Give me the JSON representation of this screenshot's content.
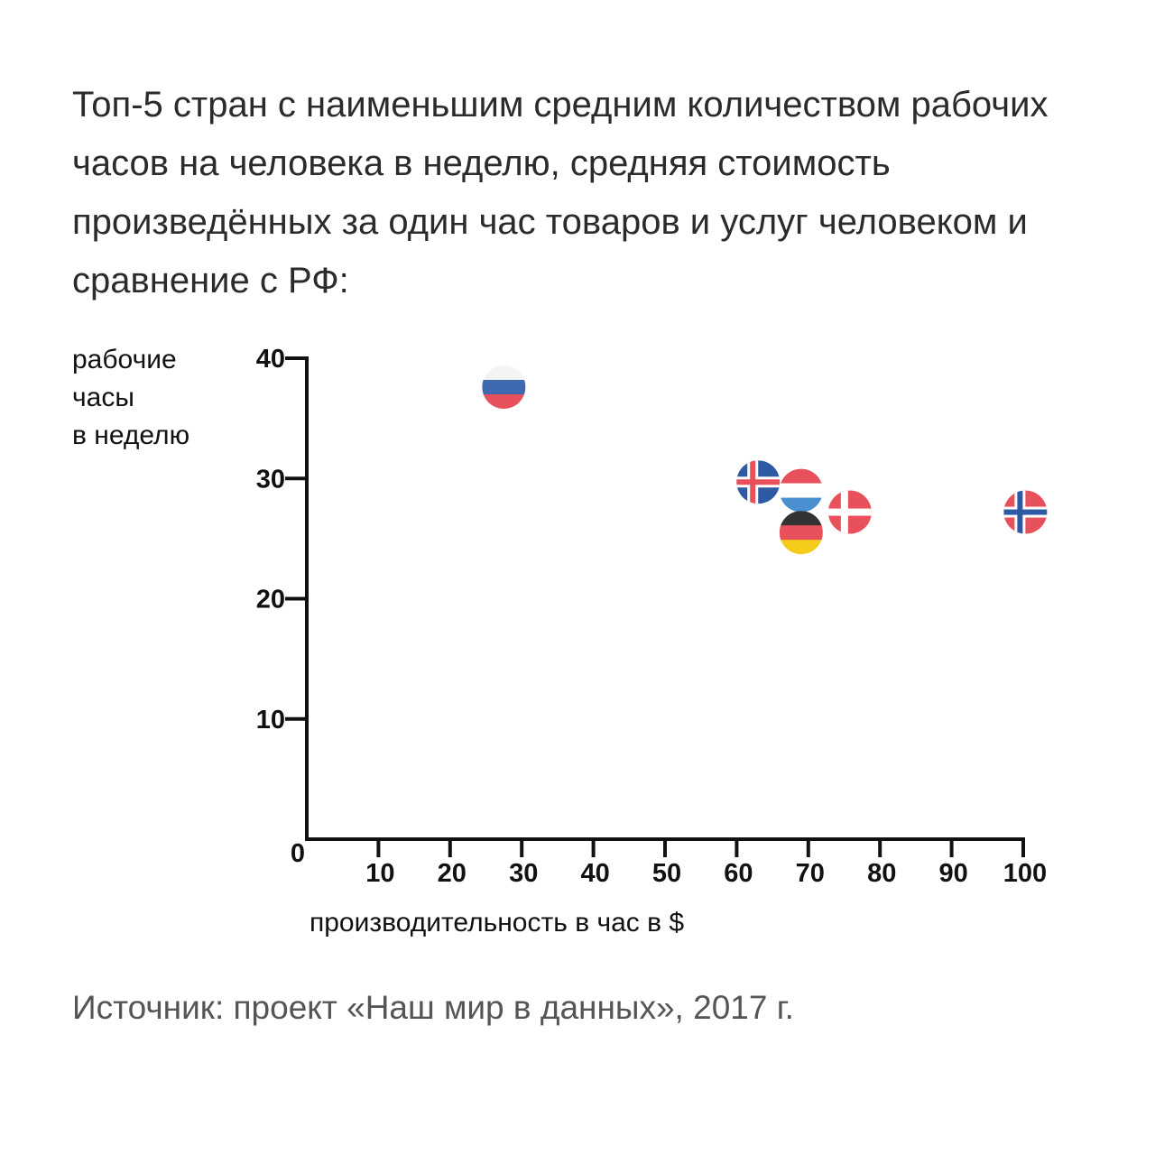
{
  "title": "Топ-5 стран с наименьшим средним количеством рабочих часов на человека в неделю, средняя стоимость произведённых за один час товаров и услуг человеком и сравнение с РФ:",
  "source": "Источник: проект «Наш мир в данных», 2017 г.",
  "chart_data": {
    "type": "scatter",
    "xlabel": "производительность в час в $",
    "ylabel_lines": [
      "рабочие",
      "часы",
      "в неделю"
    ],
    "xlim": [
      0,
      100
    ],
    "ylim": [
      0,
      40
    ],
    "x_ticks": [
      10,
      20,
      30,
      40,
      50,
      60,
      70,
      80,
      90,
      100
    ],
    "y_ticks": [
      10,
      20,
      30,
      40
    ],
    "origin_label": "0",
    "grid": false,
    "points": [
      {
        "flag": "russia-flag",
        "x": 27.5,
        "y": 37.6,
        "colors": [
          "#f4f4f4",
          "#3e6bb0",
          "#e8505b"
        ]
      },
      {
        "flag": "iceland-flag",
        "x": 63,
        "y": 29.7,
        "colors": [
          "#2e5aa3",
          "#ffffff",
          "#e8505b"
        ]
      },
      {
        "flag": "luxembourg-flag",
        "x": 69,
        "y": 29.0,
        "colors": [
          "#e8505b",
          "#ffffff",
          "#4a8fd0"
        ]
      },
      {
        "flag": "germany-flag",
        "x": 69,
        "y": 25.5,
        "colors": [
          "#333333",
          "#e8505b",
          "#f5cc1a"
        ]
      },
      {
        "flag": "denmark-flag",
        "x": 75.8,
        "y": 27.2,
        "colors": [
          "#e8505b",
          "#ffffff"
        ]
      },
      {
        "flag": "norway-flag",
        "x": 100.3,
        "y": 27.2,
        "colors": [
          "#e8505b",
          "#ffffff",
          "#2e5aa3"
        ]
      }
    ]
  }
}
